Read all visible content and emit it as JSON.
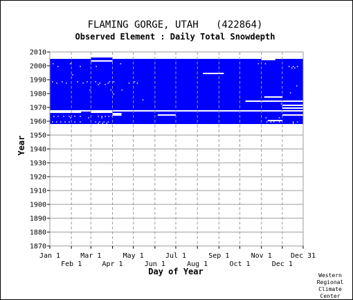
{
  "chart_data": {
    "type": "heatmap",
    "title": "FLAMING GORGE, UTAH   (422864)",
    "subtitle": "Observed Element : Daily Total Snowdepth",
    "xlabel": "Day of Year",
    "ylabel": "Year",
    "ylim": [
      1870,
      2010
    ],
    "y_ticks": [
      1870,
      1880,
      1890,
      1900,
      1910,
      1920,
      1930,
      1940,
      1950,
      1960,
      1970,
      1980,
      1990,
      2000,
      2010
    ],
    "xlim": [
      1,
      365
    ],
    "x_ticks_upper": [
      {
        "label": "Jan 1",
        "day": 1
      },
      {
        "label": "Mar 1",
        "day": 60
      },
      {
        "label": "May 1",
        "day": 121
      },
      {
        "label": "Jul 1",
        "day": 182
      },
      {
        "label": "Sep 1",
        "day": 244
      },
      {
        "label": "Nov 1",
        "day": 305
      },
      {
        "label": "Dec 31",
        "day": 365
      }
    ],
    "x_ticks_lower": [
      {
        "label": "Feb 1",
        "day": 32
      },
      {
        "label": "Apr 1",
        "day": 91
      },
      {
        "label": "Jun 1",
        "day": 152
      },
      {
        "label": "Aug 1",
        "day": 213
      },
      {
        "label": "Oct 1",
        "day": 274
      },
      {
        "label": "Dec 1",
        "day": 335
      }
    ],
    "grid": true,
    "data_color": "#0000ff",
    "coverage": {
      "year_range": [
        1957,
        2005
      ],
      "day_range": [
        1,
        365
      ],
      "meaning": "observed daily values present"
    },
    "missing_segments": [
      {
        "year": 1967,
        "day_start": 1,
        "day_end": 365
      },
      {
        "year": 1966,
        "day_start": 1,
        "day_end": 46
      },
      {
        "year": 1966,
        "day_start": 60,
        "day_end": 91
      },
      {
        "year": 1965,
        "day_start": 91,
        "day_end": 104
      },
      {
        "year": 1964,
        "day_start": 91,
        "day_end": 104
      },
      {
        "year": 1964,
        "day_start": 156,
        "day_end": 182
      },
      {
        "year": 1994,
        "day_start": 221,
        "day_end": 251
      },
      {
        "year": 2003,
        "day_start": 60,
        "day_end": 91
      },
      {
        "year": 2005,
        "day_start": 1,
        "day_end": 60
      },
      {
        "year": 2005,
        "day_start": 91,
        "day_end": 365
      },
      {
        "year": 2004,
        "day_start": 305,
        "day_end": 325
      },
      {
        "year": 1977,
        "day_start": 309,
        "day_end": 335
      },
      {
        "year": 1974,
        "day_start": 282,
        "day_end": 365
      },
      {
        "year": 1971,
        "day_start": 335,
        "day_end": 365
      },
      {
        "year": 1969,
        "day_start": 335,
        "day_end": 365
      },
      {
        "year": 1964,
        "day_start": 335,
        "day_end": 365
      },
      {
        "year": 1960,
        "day_start": 314,
        "day_end": 335
      },
      {
        "year": 1957,
        "day_start": 1,
        "day_end": 365
      }
    ],
    "sparse_gaps": [
      {
        "year": 2001,
        "days": [
          5,
          30,
          102,
          300,
          310
        ]
      },
      {
        "year": 1999,
        "days": [
          12,
          44,
          67,
          344,
          350,
          356
        ]
      },
      {
        "year": 1998,
        "days": [
          348,
          352
        ]
      },
      {
        "year": 1993,
        "days": [
          33
        ]
      },
      {
        "year": 1988,
        "days": [
          4,
          18,
          40,
          54,
          66,
          86,
          92,
          122
        ]
      },
      {
        "year": 1987,
        "days": [
          10,
          24,
          48,
          72,
          84,
          114,
          126
        ]
      },
      {
        "year": 1986,
        "days": [
          70,
          80
        ]
      },
      {
        "year": 1985,
        "days": [
          355
        ]
      },
      {
        "year": 1982,
        "days": [
          58,
          88,
          104
        ]
      },
      {
        "year": 1980,
        "days": [
          346
        ]
      },
      {
        "year": 1979,
        "days": [
          92
        ]
      },
      {
        "year": 1975,
        "days": [
          134
        ]
      },
      {
        "year": 1972,
        "days": [
          333
        ]
      },
      {
        "year": 1963,
        "days": [
          6,
          12,
          20,
          28,
          36,
          44,
          70,
          75,
          80,
          85,
          90
        ]
      },
      {
        "year": 1962,
        "days": [
          30,
          56,
          75,
          311,
          330
        ]
      },
      {
        "year": 1959,
        "days": [
          4,
          10,
          16,
          22,
          28,
          36,
          44,
          66,
          72,
          78,
          84,
          312,
          318,
          322,
          330,
          350,
          356
        ]
      },
      {
        "year": 1958,
        "days": [
          70,
          76,
          82,
          350
        ]
      }
    ],
    "credit": [
      "Western",
      "Regional",
      "Climate",
      "Center"
    ]
  }
}
